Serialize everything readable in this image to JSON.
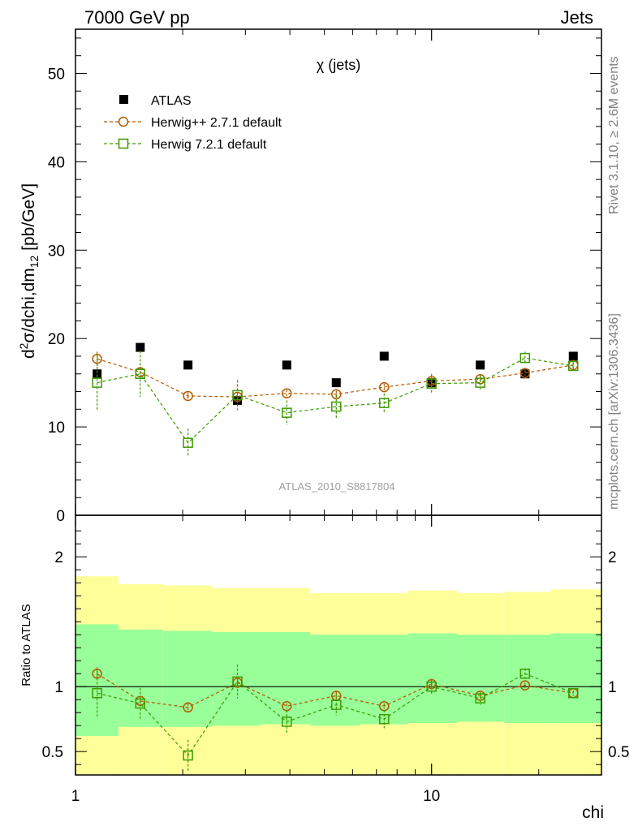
{
  "header": {
    "left": "7000 GeV pp",
    "right": "Jets",
    "side_top": "Rivet 3.1.10, ≥ 2.6M events",
    "side_bottom": "mcplots.cern.ch [arXiv:1306.3436]"
  },
  "chart_data": [
    {
      "type": "scatter",
      "title": "χ (jets)",
      "watermark": "ATLAS_2010_S8817804",
      "ylabel_parts": {
        "d": "d",
        "sup": "2",
        "mid": "σ/dchi,dm",
        "sub": "12",
        "unit": " [pb/GeV]"
      },
      "xscale": "log",
      "xlim": [
        1,
        30
      ],
      "ylim": [
        0,
        55
      ],
      "yticks": [
        0,
        10,
        20,
        30,
        40,
        50
      ],
      "x": [
        1.15,
        1.52,
        2.07,
        2.85,
        3.92,
        5.4,
        7.36,
        10.0,
        13.7,
        18.3,
        25.0
      ],
      "series": [
        {
          "name": "ATLAS",
          "marker": "filled-square",
          "color": "#000000",
          "values": [
            16,
            19,
            17,
            13,
            17,
            15,
            18,
            15,
            17,
            16,
            18
          ]
        },
        {
          "name": "Herwig++ 2.7.1 default",
          "marker": "open-circle",
          "color": "#b35a00",
          "values": [
            17.7,
            16.2,
            13.5,
            13.4,
            13.8,
            13.7,
            14.5,
            15.2,
            15.4,
            16.1,
            17.0
          ],
          "errors": [
            0.8,
            0.5,
            0.4,
            0.4,
            0.4,
            0.4,
            0.4,
            0.4,
            0.4,
            0.3,
            0.3
          ]
        },
        {
          "name": "Herwig 7.2.1 default",
          "marker": "open-square",
          "color": "#3c9a00",
          "values": [
            15.0,
            16.0,
            8.2,
            13.6,
            11.6,
            12.3,
            12.7,
            14.9,
            15.0,
            17.8,
            16.9
          ],
          "errors": [
            3.2,
            2.6,
            1.6,
            1.7,
            1.4,
            1.3,
            1.1,
            1.1,
            0.9,
            0.7,
            0.4
          ]
        }
      ]
    },
    {
      "type": "scatter",
      "ylabel": "Ratio to ATLAS",
      "xlabel": "chi",
      "xscale": "log",
      "xlim": [
        1,
        30
      ],
      "ylim": [
        0.32,
        2.32
      ],
      "yticks": [
        0.5,
        1,
        2
      ],
      "xtick_labels": [
        {
          "x": 1,
          "label": "1"
        },
        {
          "x": 10,
          "label": "10"
        }
      ],
      "bin_edges": [
        1.0,
        1.32,
        1.76,
        2.42,
        3.31,
        4.56,
        6.31,
        8.58,
        11.8,
        16.0,
        21.6,
        30.0
      ],
      "band_inner": [
        [
          0.62,
          1.48
        ],
        [
          0.69,
          1.44
        ],
        [
          0.69,
          1.43
        ],
        [
          0.7,
          1.42
        ],
        [
          0.71,
          1.42
        ],
        [
          0.7,
          1.4
        ],
        [
          0.71,
          1.4
        ],
        [
          0.72,
          1.41
        ],
        [
          0.73,
          1.4
        ],
        [
          0.72,
          1.4
        ],
        [
          0.72,
          1.41
        ]
      ],
      "band_outer": [
        [
          0.32,
          1.85
        ],
        [
          0.32,
          1.79
        ],
        [
          0.32,
          1.78
        ],
        [
          0.32,
          1.76
        ],
        [
          0.32,
          1.76
        ],
        [
          0.32,
          1.72
        ],
        [
          0.32,
          1.72
        ],
        [
          0.32,
          1.74
        ],
        [
          0.32,
          1.72
        ],
        [
          0.32,
          1.73
        ],
        [
          0.32,
          1.75
        ]
      ],
      "reference": 1,
      "x": [
        1.15,
        1.52,
        2.07,
        2.85,
        3.92,
        5.4,
        7.36,
        10.0,
        13.7,
        18.3,
        25.0
      ],
      "series": [
        {
          "name": "Herwig++ 2.7.1 default",
          "marker": "open-circle",
          "color": "#b35a00",
          "values": [
            1.1,
            0.89,
            0.84,
            1.03,
            0.85,
            0.93,
            0.85,
            1.02,
            0.93,
            1.01,
            0.95
          ],
          "errors": [
            0.05,
            0.03,
            0.03,
            0.03,
            0.02,
            0.03,
            0.02,
            0.03,
            0.02,
            0.02,
            0.02
          ]
        },
        {
          "name": "Herwig 7.2.1 default",
          "marker": "open-square",
          "color": "#3c9a00",
          "values": [
            0.95,
            0.87,
            0.47,
            1.04,
            0.73,
            0.86,
            0.75,
            1.0,
            0.91,
            1.1,
            0.95
          ],
          "errors": [
            0.18,
            0.12,
            0.12,
            0.13,
            0.09,
            0.08,
            0.07,
            0.06,
            0.05,
            0.04,
            0.02
          ]
        }
      ]
    }
  ]
}
